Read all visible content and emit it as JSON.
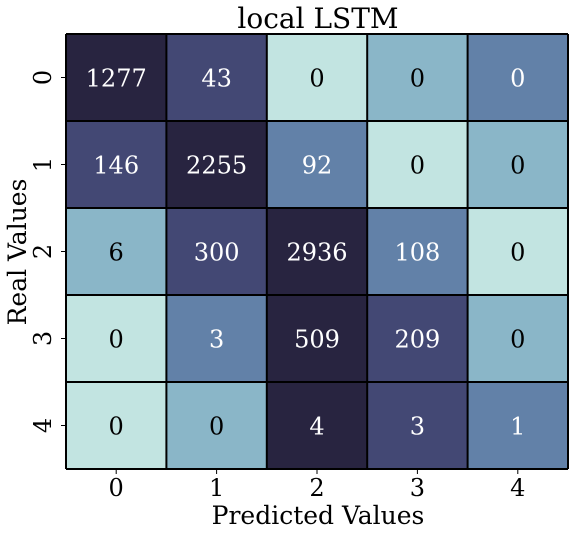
{
  "chart_data": {
    "type": "heatmap",
    "title": "local LSTM",
    "xlabel": "Predicted Values",
    "ylabel": "Real Values",
    "x_categories": [
      "0",
      "1",
      "2",
      "3",
      "4"
    ],
    "y_categories": [
      "0",
      "1",
      "2",
      "3",
      "4"
    ],
    "values": [
      [
        1277,
        43,
        0,
        0,
        0
      ],
      [
        146,
        2255,
        92,
        0,
        0
      ],
      [
        6,
        300,
        2936,
        108,
        0
      ],
      [
        0,
        3,
        509,
        209,
        0
      ],
      [
        0,
        0,
        4,
        3,
        1
      ]
    ],
    "cell_colors": [
      [
        "#282440",
        "#434874",
        "#c2e4e1",
        "#8ab6c8",
        "#6281a8"
      ],
      [
        "#434874",
        "#282440",
        "#6281a8",
        "#c2e4e1",
        "#8ab6c8"
      ],
      [
        "#8ab6c8",
        "#434874",
        "#282440",
        "#6281a8",
        "#c2e4e1"
      ],
      [
        "#c2e4e1",
        "#6281a8",
        "#282440",
        "#434874",
        "#8ab6c8"
      ],
      [
        "#c2e4e1",
        "#8ab6c8",
        "#282440",
        "#434874",
        "#6281a8"
      ]
    ],
    "cell_text_colors": [
      [
        "#ffffff",
        "#ffffff",
        "#000000",
        "#000000",
        "#ffffff"
      ],
      [
        "#ffffff",
        "#ffffff",
        "#ffffff",
        "#000000",
        "#000000"
      ],
      [
        "#000000",
        "#ffffff",
        "#ffffff",
        "#ffffff",
        "#000000"
      ],
      [
        "#000000",
        "#ffffff",
        "#ffffff",
        "#ffffff",
        "#000000"
      ],
      [
        "#000000",
        "#000000",
        "#ffffff",
        "#ffffff",
        "#ffffff"
      ]
    ],
    "grid": true,
    "colorbar": false
  }
}
